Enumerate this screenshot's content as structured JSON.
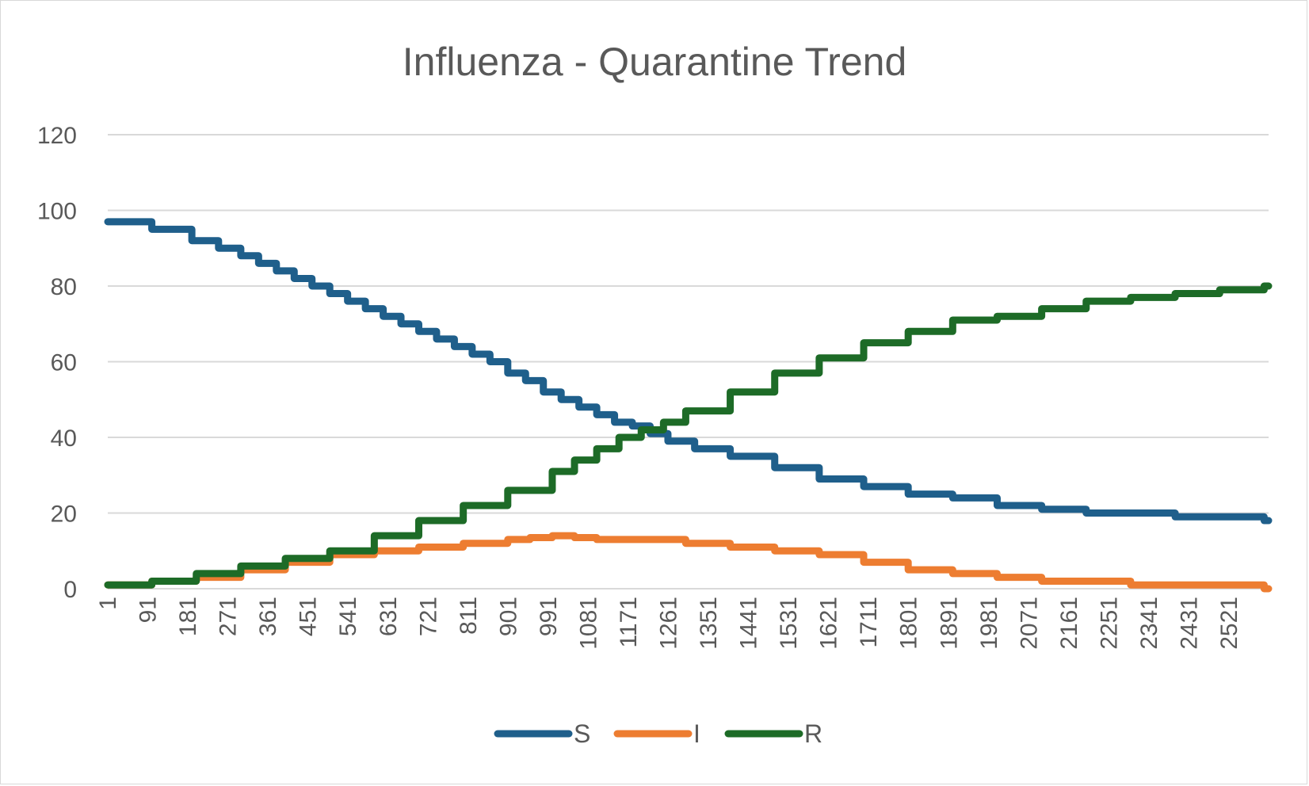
{
  "chart_data": {
    "type": "line",
    "title": "Influenza - Quarantine Trend",
    "xlabel": "",
    "ylabel": "",
    "ylim": [
      0,
      120
    ],
    "y_ticks": [
      "0",
      "20",
      "40",
      "60",
      "80",
      "100",
      "120"
    ],
    "x_range": [
      1,
      2610
    ],
    "x_ticks": [
      "1",
      "91",
      "181",
      "271",
      "361",
      "451",
      "541",
      "631",
      "721",
      "811",
      "901",
      "991",
      "1081",
      "1171",
      "1261",
      "1351",
      "1441",
      "1531",
      "1621",
      "1711",
      "1801",
      "1891",
      "1981",
      "2071",
      "2161",
      "2251",
      "2341",
      "2431",
      "2521"
    ],
    "grid": true,
    "legend_position": "bottom",
    "series": [
      {
        "name": "S",
        "color": "#1f5f8b",
        "x": [
          1,
          100,
          190,
          250,
          300,
          340,
          380,
          420,
          460,
          500,
          540,
          580,
          620,
          660,
          700,
          740,
          780,
          820,
          860,
          900,
          940,
          980,
          1020,
          1060,
          1100,
          1140,
          1180,
          1220,
          1260,
          1320,
          1400,
          1500,
          1600,
          1700,
          1800,
          1900,
          2000,
          2100,
          2200,
          2400,
          2600
        ],
        "y": [
          97,
          95,
          92,
          90,
          88,
          86,
          84,
          82,
          80,
          78,
          76,
          74,
          72,
          70,
          68,
          66,
          64,
          62,
          60,
          57,
          55,
          52,
          50,
          48,
          46,
          44,
          43,
          41,
          39,
          37,
          35,
          32,
          29,
          27,
          25,
          24,
          22,
          21,
          20,
          19,
          18
        ]
      },
      {
        "name": "I",
        "color": "#ed7d31",
        "x": [
          1,
          100,
          200,
          300,
          400,
          500,
          600,
          700,
          800,
          900,
          950,
          1000,
          1050,
          1100,
          1200,
          1300,
          1400,
          1500,
          1600,
          1700,
          1800,
          1900,
          2000,
          2100,
          2200,
          2300,
          2400,
          2500,
          2600
        ],
        "y": [
          1,
          2,
          3,
          5,
          7,
          9,
          10,
          11,
          12,
          13,
          13.5,
          14,
          13.5,
          13,
          13,
          12,
          11,
          10,
          9,
          7,
          5,
          4,
          3,
          2,
          2,
          1,
          1,
          1,
          0
        ]
      },
      {
        "name": "R",
        "color": "#1d6b27",
        "x": [
          1,
          100,
          200,
          300,
          400,
          500,
          600,
          700,
          800,
          900,
          1000,
          1050,
          1100,
          1150,
          1200,
          1250,
          1300,
          1400,
          1500,
          1600,
          1700,
          1800,
          1900,
          2000,
          2100,
          2200,
          2300,
          2400,
          2500,
          2600
        ],
        "y": [
          1,
          2,
          4,
          6,
          8,
          10,
          14,
          18,
          22,
          26,
          31,
          34,
          37,
          40,
          42,
          44,
          47,
          52,
          57,
          61,
          65,
          68,
          71,
          72,
          74,
          76,
          77,
          78,
          79,
          80
        ]
      }
    ]
  }
}
